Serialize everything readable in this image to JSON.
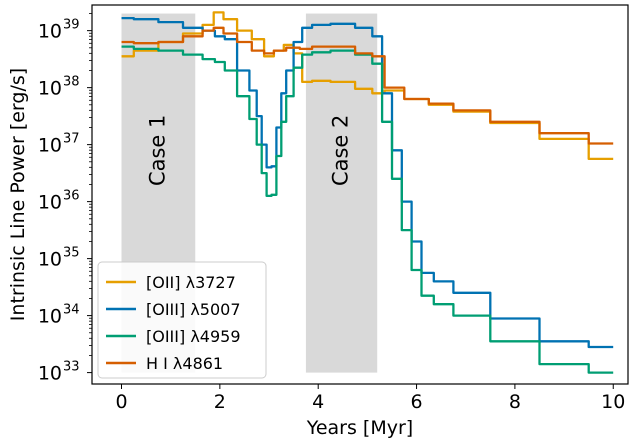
{
  "chart_data": {
    "type": "line",
    "xlabel": "Years [Myr]",
    "ylabel": "Intrinsic Line Power [erg/s]",
    "xlim": [
      -0.6,
      10.3
    ],
    "ylim_log10": [
      32.8,
      39.45
    ],
    "y_scale": "log",
    "x_ticks": [
      0,
      2,
      4,
      6,
      8,
      10
    ],
    "x_tick_labels": [
      "0",
      "2",
      "4",
      "6",
      "8",
      "10"
    ],
    "y_ticks_log10": [
      33,
      34,
      35,
      36,
      37,
      38,
      39
    ],
    "y_tick_labels": [
      "10",
      "10",
      "10",
      "10",
      "10",
      "10",
      "10"
    ],
    "y_tick_exponents": [
      "33",
      "34",
      "35",
      "36",
      "37",
      "38",
      "39"
    ],
    "grid": false,
    "legend_position": "lower-left",
    "shaded_regions": [
      {
        "label": "Case 1",
        "x0": 0.0,
        "x1": 1.5,
        "log_y0": 33.0,
        "log_y1": 39.3
      },
      {
        "label": "Case 2",
        "x0": 3.75,
        "x1": 5.2,
        "log_y0": 33.0,
        "log_y1": 39.3
      }
    ],
    "series": [
      {
        "name": "[OII] λ3727",
        "color": "#E69F00",
        "x": [
          0,
          0.5,
          1.0,
          1.5,
          1.8,
          1.95,
          2.2,
          2.5,
          2.8,
          3.0,
          3.2,
          3.4,
          3.6,
          3.75,
          4.0,
          4.5,
          5.0,
          5.2,
          5.5,
          6.0,
          6.5,
          7.0,
          8.0,
          9.0,
          10.0
        ],
        "y_log10": [
          38.55,
          38.65,
          38.8,
          38.95,
          39.1,
          39.32,
          39.2,
          39.0,
          38.85,
          38.55,
          38.65,
          38.75,
          38.6,
          38.1,
          38.12,
          38.1,
          37.98,
          37.9,
          37.95,
          37.8,
          37.7,
          37.58,
          37.38,
          37.1,
          36.75
        ]
      },
      {
        "name": "[OIII] λ5007",
        "color": "#0072B2",
        "x": [
          0,
          0.5,
          1.0,
          1.5,
          1.8,
          2.0,
          2.2,
          2.5,
          2.7,
          2.8,
          2.9,
          3.0,
          3.1,
          3.2,
          3.3,
          3.4,
          3.6,
          3.75,
          4.0,
          4.5,
          5.0,
          5.2,
          5.4,
          5.6,
          5.8,
          6.0,
          6.2,
          6.5,
          7.0,
          8.0,
          9.0,
          10.0
        ],
        "y_log10": [
          39.22,
          39.2,
          39.15,
          39.05,
          39.0,
          38.9,
          38.85,
          38.3,
          37.95,
          37.5,
          37.0,
          36.6,
          36.62,
          37.3,
          37.9,
          38.3,
          38.8,
          39.05,
          39.1,
          39.12,
          39.05,
          38.9,
          37.9,
          36.9,
          36.0,
          35.3,
          34.75,
          34.6,
          34.4,
          33.95,
          33.55,
          33.45
        ]
      },
      {
        "name": "[OIII] λ4959",
        "color": "#009E73",
        "x": [
          0,
          0.5,
          1.0,
          1.5,
          1.8,
          2.0,
          2.2,
          2.5,
          2.7,
          2.8,
          2.9,
          3.0,
          3.1,
          3.2,
          3.3,
          3.4,
          3.6,
          3.75,
          4.0,
          4.5,
          5.0,
          5.2,
          5.4,
          5.6,
          5.8,
          6.0,
          6.2,
          6.5,
          7.0,
          8.0,
          9.0,
          10.0
        ],
        "y_log10": [
          38.72,
          38.68,
          38.65,
          38.58,
          38.5,
          38.45,
          38.3,
          37.85,
          37.45,
          37.0,
          36.5,
          36.1,
          36.12,
          36.8,
          37.4,
          37.85,
          38.35,
          38.58,
          38.62,
          38.65,
          38.58,
          38.42,
          37.4,
          36.4,
          35.5,
          34.8,
          34.35,
          34.2,
          34.0,
          33.55,
          33.15,
          33.0
        ]
      },
      {
        "name": "H I λ4861",
        "color": "#D55E00",
        "x": [
          0,
          0.5,
          1.0,
          1.5,
          1.8,
          1.95,
          2.2,
          2.5,
          2.8,
          3.0,
          3.2,
          3.5,
          3.75,
          4.0,
          4.5,
          5.0,
          5.2,
          5.5,
          6.0,
          6.5,
          7.0,
          8.0,
          9.0,
          10.0
        ],
        "y_log10": [
          38.8,
          38.78,
          38.8,
          38.9,
          39.0,
          39.05,
          38.95,
          38.8,
          38.65,
          38.6,
          38.65,
          38.7,
          38.68,
          38.72,
          38.72,
          38.6,
          38.55,
          38.0,
          37.8,
          37.72,
          37.6,
          37.4,
          37.2,
          37.02
        ]
      }
    ]
  }
}
